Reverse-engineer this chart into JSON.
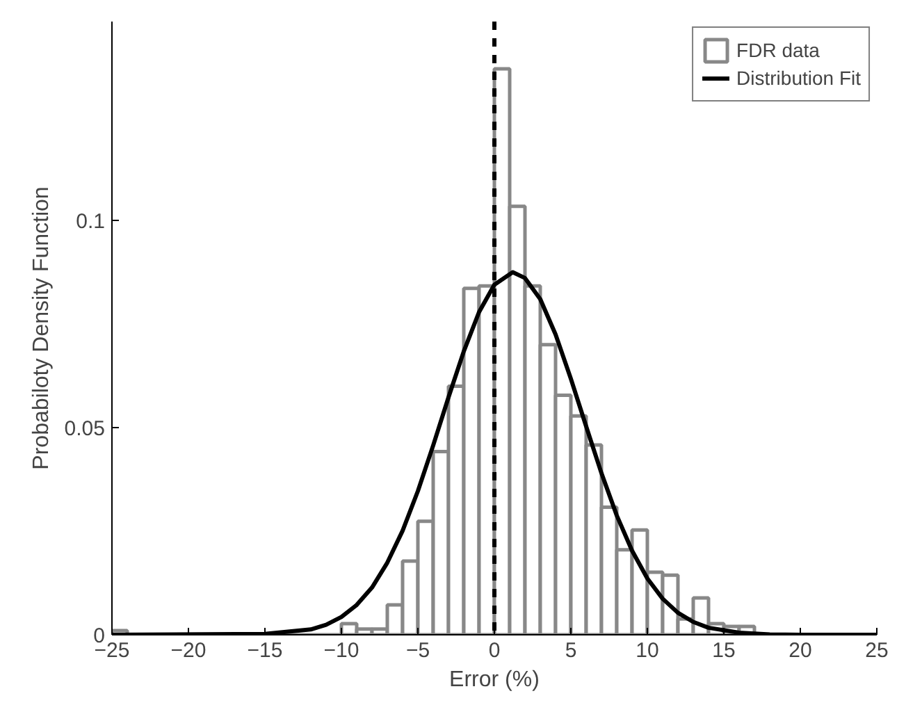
{
  "chart_data": {
    "type": "histogram",
    "xlabel": "Error (%)",
    "ylabel": "Probabiloty Density Function",
    "xlim": [
      -25,
      25
    ],
    "xticks": [
      {
        "value": -25,
        "label": "−25"
      },
      {
        "value": -20,
        "label": "−20"
      },
      {
        "value": -15,
        "label": "−15"
      },
      {
        "value": -10,
        "label": "−10"
      },
      {
        "value": -5,
        "label": "−5"
      },
      0,
      5,
      10,
      15,
      20,
      25
    ],
    "ylim": [
      0,
      0.148
    ],
    "yticks": [
      0,
      0.05,
      0.1
    ],
    "grid": false,
    "legend": "top right",
    "ref_lines": [
      {
        "axis": "x",
        "value": 0,
        "color": "#000000",
        "line_style": "dashed"
      }
    ],
    "series": [
      {
        "name": "FDR data",
        "color": "#888888",
        "bins": [
          -25,
          -24,
          -23,
          -22,
          -21,
          -20,
          -19,
          -18,
          -17,
          -16,
          -15,
          -14,
          -13,
          -12,
          -11,
          -10,
          -9,
          -8,
          -7,
          -6,
          -5,
          -4,
          -3,
          -2,
          -1,
          0,
          1,
          2,
          3,
          4,
          5,
          6,
          7,
          8,
          9,
          10,
          11,
          12,
          13,
          14,
          15,
          16,
          17,
          18,
          19,
          20
        ],
        "values": [
          0.001,
          0,
          0,
          0,
          0,
          0,
          0,
          0,
          0,
          0,
          0,
          0,
          0,
          0,
          0,
          0.0027,
          0.0014,
          0.0014,
          0.0072,
          0.0178,
          0.0274,
          0.0442,
          0.06,
          0.0836,
          0.0842,
          0.1366,
          0.1034,
          0.0842,
          0.07,
          0.0578,
          0.0528,
          0.0458,
          0.0308,
          0.0205,
          0.0253,
          0.0151,
          0.0144,
          0.0038,
          0.0089,
          0.0027,
          0.002,
          0.002,
          null,
          null,
          null
        ]
      },
      {
        "name": "Distribution Fit",
        "type": "line",
        "color": "#000000",
        "x": [
          -25,
          -15,
          -12,
          -11,
          -10,
          -9,
          -8,
          -7,
          -6,
          -5,
          -4,
          -3,
          -2,
          -1,
          0,
          1.2,
          2,
          3,
          4,
          5,
          6,
          7,
          8,
          9,
          10,
          11,
          12,
          13,
          14,
          16,
          18,
          20,
          25
        ],
        "values": [
          0,
          0.0002,
          0.0013,
          0.0024,
          0.0043,
          0.0072,
          0.0114,
          0.0174,
          0.0251,
          0.0347,
          0.0457,
          0.0573,
          0.0684,
          0.0779,
          0.0845,
          0.0875,
          0.0861,
          0.081,
          0.0725,
          0.0618,
          0.0503,
          0.039,
          0.0288,
          0.0203,
          0.0136,
          0.0087,
          0.0053,
          0.0031,
          0.0017,
          0.0005,
          0.0001,
          0,
          0
        ]
      }
    ]
  }
}
